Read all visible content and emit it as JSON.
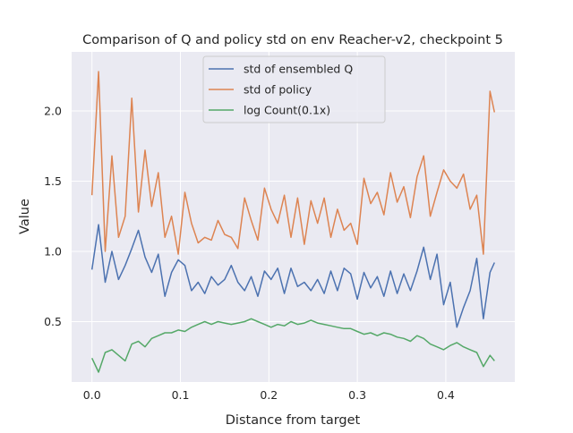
{
  "chart_data": {
    "type": "line",
    "title": "Comparison of Q and policy std on env Reacher-v2, checkpoint 5",
    "xlabel": "Distance from target",
    "ylabel": "Value",
    "xlim": [
      -0.023,
      0.478
    ],
    "ylim": [
      0.07,
      2.42
    ],
    "xticks": [
      "0.0",
      "0.1",
      "0.2",
      "0.3",
      "0.4"
    ],
    "xtick_values": [
      0.0,
      0.1,
      0.2,
      0.3,
      0.4
    ],
    "yticks": [
      "0.5",
      "1.0",
      "1.5",
      "2.0"
    ],
    "ytick_values": [
      0.5,
      1.0,
      1.5,
      2.0
    ],
    "grid": true,
    "legend_position": "top-center",
    "background": "#eaeaf2",
    "x": [
      0.0,
      0.0075,
      0.015,
      0.0225,
      0.03,
      0.0375,
      0.045,
      0.0525,
      0.06,
      0.0675,
      0.075,
      0.0825,
      0.09,
      0.0975,
      0.105,
      0.1125,
      0.12,
      0.1275,
      0.135,
      0.1425,
      0.15,
      0.1575,
      0.165,
      0.1725,
      0.18,
      0.1875,
      0.195,
      0.2025,
      0.21,
      0.2175,
      0.225,
      0.2325,
      0.24,
      0.2475,
      0.255,
      0.2625,
      0.27,
      0.2775,
      0.285,
      0.2925,
      0.3,
      0.3075,
      0.315,
      0.3225,
      0.33,
      0.3375,
      0.345,
      0.3525,
      0.36,
      0.3675,
      0.375,
      0.3825,
      0.39,
      0.3975,
      0.405,
      0.4125,
      0.42,
      0.4275,
      0.435,
      0.4425,
      0.45,
      0.455
    ],
    "series": [
      {
        "name": "std of ensembled Q",
        "color": "#4c72b0",
        "values": [
          0.87,
          1.19,
          0.78,
          1.0,
          0.8,
          0.9,
          1.02,
          1.15,
          0.96,
          0.85,
          0.98,
          0.68,
          0.85,
          0.94,
          0.9,
          0.72,
          0.78,
          0.7,
          0.82,
          0.76,
          0.8,
          0.9,
          0.78,
          0.72,
          0.82,
          0.68,
          0.86,
          0.8,
          0.88,
          0.7,
          0.88,
          0.75,
          0.78,
          0.72,
          0.8,
          0.7,
          0.86,
          0.72,
          0.88,
          0.84,
          0.66,
          0.85,
          0.74,
          0.82,
          0.68,
          0.86,
          0.7,
          0.84,
          0.72,
          0.86,
          1.03,
          0.8,
          0.98,
          0.62,
          0.78,
          0.46,
          0.6,
          0.72,
          0.95,
          0.52,
          0.85,
          0.92
        ]
      },
      {
        "name": "std of policy",
        "color": "#dd8452",
        "values": [
          1.4,
          2.28,
          1.0,
          1.68,
          1.1,
          1.25,
          2.09,
          1.28,
          1.72,
          1.32,
          1.56,
          1.1,
          1.25,
          0.98,
          1.42,
          1.2,
          1.06,
          1.1,
          1.08,
          1.22,
          1.12,
          1.1,
          1.02,
          1.38,
          1.22,
          1.08,
          1.45,
          1.3,
          1.2,
          1.4,
          1.1,
          1.38,
          1.05,
          1.36,
          1.2,
          1.38,
          1.1,
          1.3,
          1.15,
          1.2,
          1.05,
          1.52,
          1.34,
          1.42,
          1.26,
          1.56,
          1.35,
          1.46,
          1.24,
          1.53,
          1.68,
          1.25,
          1.42,
          1.58,
          1.5,
          1.45,
          1.55,
          1.3,
          1.4,
          0.98,
          2.14,
          1.99
        ]
      },
      {
        "name": "log Count(0.1x)",
        "color": "#55a868",
        "values": [
          0.24,
          0.14,
          0.28,
          0.3,
          0.26,
          0.22,
          0.34,
          0.36,
          0.32,
          0.38,
          0.4,
          0.42,
          0.42,
          0.44,
          0.43,
          0.46,
          0.48,
          0.5,
          0.48,
          0.5,
          0.49,
          0.48,
          0.49,
          0.5,
          0.52,
          0.5,
          0.48,
          0.46,
          0.48,
          0.47,
          0.5,
          0.48,
          0.49,
          0.51,
          0.49,
          0.48,
          0.47,
          0.46,
          0.45,
          0.45,
          0.43,
          0.41,
          0.42,
          0.4,
          0.42,
          0.41,
          0.39,
          0.38,
          0.36,
          0.4,
          0.38,
          0.34,
          0.32,
          0.3,
          0.33,
          0.35,
          0.32,
          0.3,
          0.28,
          0.18,
          0.26,
          0.22
        ]
      }
    ]
  }
}
